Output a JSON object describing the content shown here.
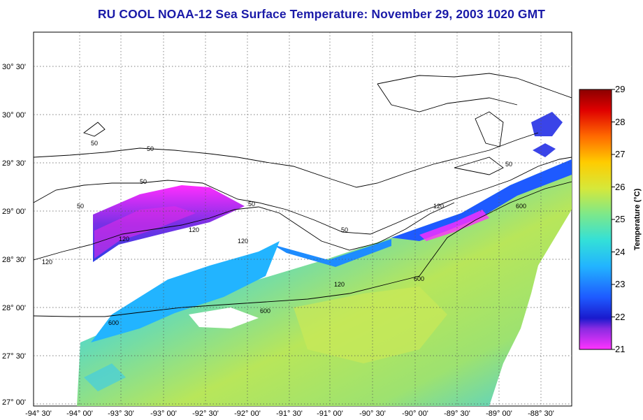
{
  "title": "RU COOL  NOAA-12  Sea Surface Temperature:  November 29, 2003 1020 GMT",
  "lat_labels": [
    "30° 30'",
    "30° 00'",
    "29° 30'",
    "29° 00'",
    "28° 30'",
    "28° 00'",
    "27° 30'",
    "27° 00'"
  ],
  "lon_labels": [
    "-94° 30'",
    "-94° 00'",
    "-93° 30'",
    "-93° 00'",
    "-92° 30'",
    "-92° 00'",
    "-91° 30'",
    "-91° 00'",
    "-90° 30'",
    "-90° 00'",
    "-89° 30'",
    "-89° 00'",
    "-88° 30'"
  ],
  "colorbar": {
    "title": "Temperature (°C)",
    "ticks": [
      "29",
      "28",
      "27",
      "26",
      "25",
      "24",
      "23",
      "22",
      "21"
    ],
    "min": 21,
    "max": 29
  },
  "contours": {
    "labels": [
      "50",
      "50",
      "50",
      "50",
      "50",
      "50",
      "120",
      "120",
      "120",
      "120",
      "120",
      "120",
      "600",
      "600",
      "600",
      "600",
      "50"
    ]
  },
  "colors": {
    "title": "#1a1aa8",
    "grid": "#555555",
    "land": "#ffffff"
  }
}
